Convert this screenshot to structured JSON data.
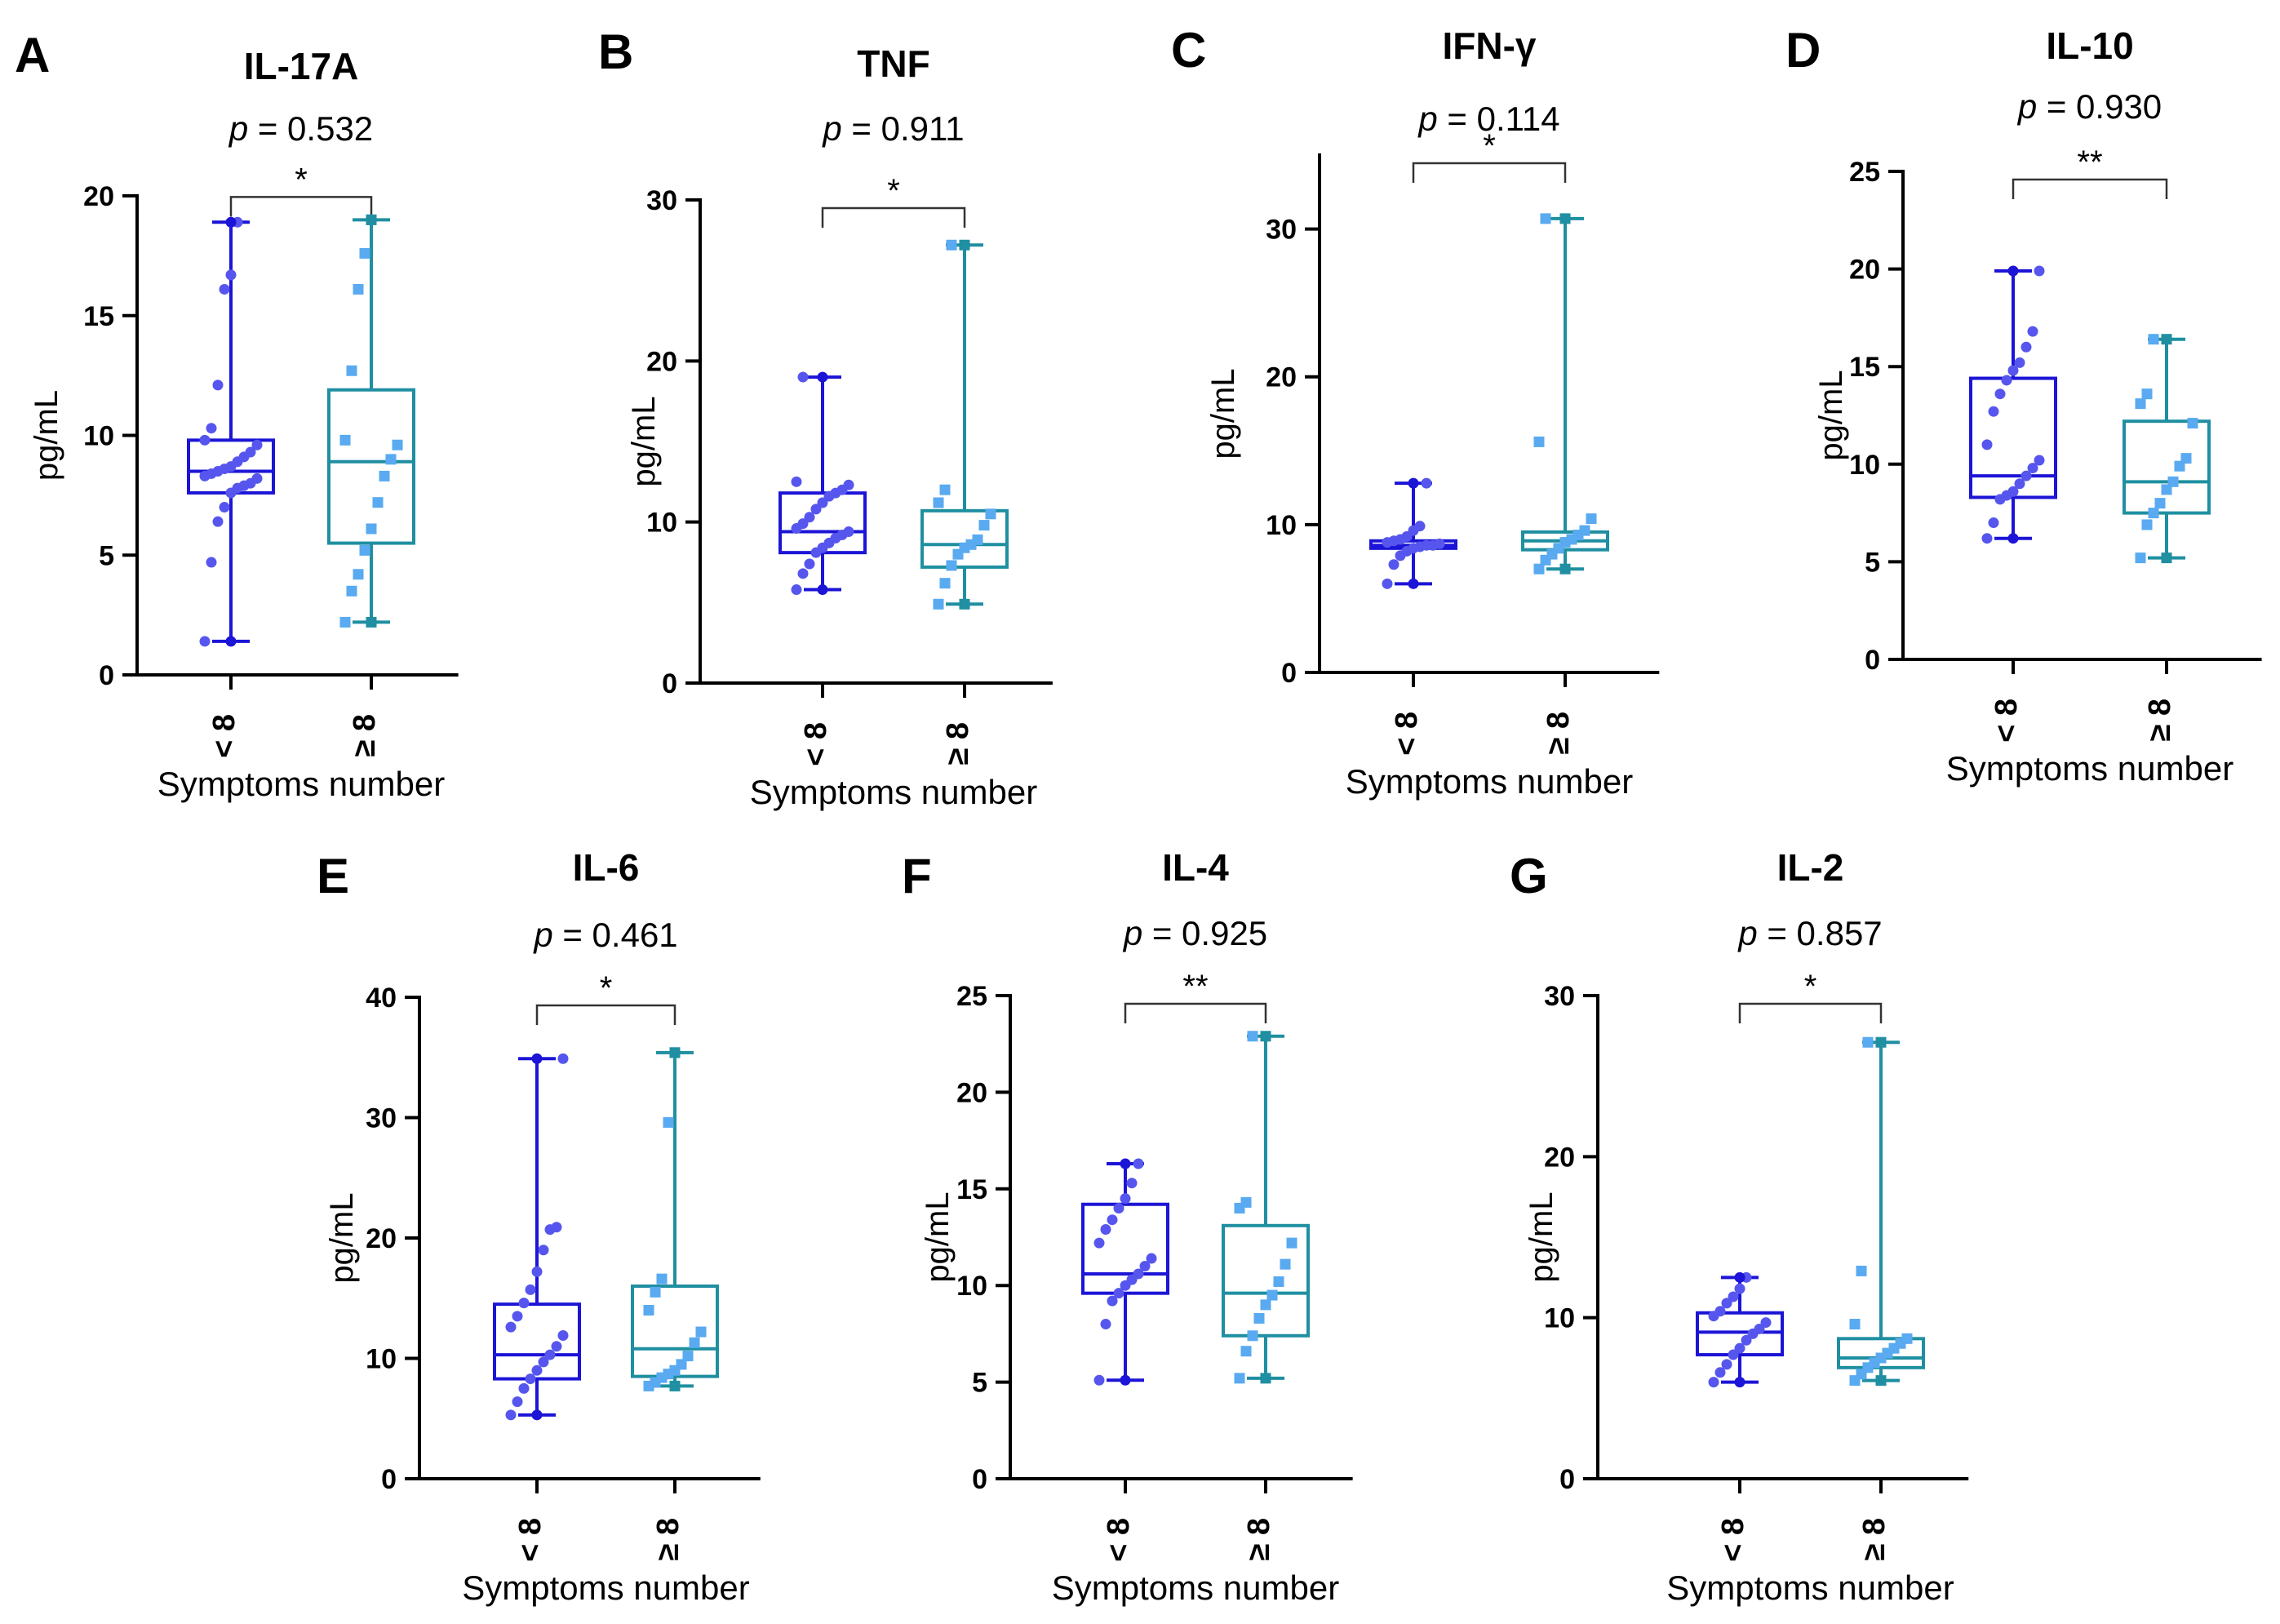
{
  "figure": {
    "ylabel": "pg/mL",
    "xlabel": "Symptoms number",
    "categories": [
      "< 8",
      "≥ 8"
    ]
  },
  "colors": {
    "low": "#1c14d6",
    "high": "#1f8fa1",
    "low_points": "#5656ee",
    "high_points": "#59aaf0",
    "bracket": "#333333",
    "axis": "#000000"
  },
  "chart_data": [
    {
      "panel": "A",
      "title": "IL-17A",
      "p_label": "p",
      "p_value": "= 0.532",
      "sig": "*",
      "type": "box",
      "ylim": [
        0,
        20
      ],
      "yticks": [
        0,
        5,
        10,
        15,
        20
      ],
      "groups": [
        {
          "name": "< 8",
          "min": 1.4,
          "q1": 7.6,
          "median": 8.5,
          "q3": 9.8,
          "max": 18.9,
          "points": [
            1.4,
            4.7,
            6.4,
            7.0,
            7.6,
            7.8,
            7.9,
            8.0,
            8.2,
            8.3,
            8.4,
            8.5,
            8.6,
            8.7,
            8.9,
            9.1,
            9.3,
            9.6,
            9.8,
            10.3,
            12.1,
            16.1,
            16.7,
            18.9
          ]
        },
        {
          "name": "≥ 8",
          "min": 2.2,
          "q1": 5.5,
          "median": 8.9,
          "q3": 11.9,
          "max": 19.0,
          "points": [
            2.2,
            3.5,
            4.2,
            5.2,
            6.1,
            7.2,
            8.3,
            9.0,
            9.6,
            9.8,
            12.7,
            16.1,
            17.6,
            19.0
          ]
        }
      ]
    },
    {
      "panel": "B",
      "title": "TNF",
      "p_label": "p",
      "p_value": "= 0.911",
      "sig": "*",
      "type": "box",
      "ylim": [
        0,
        30
      ],
      "yticks": [
        0,
        10,
        20,
        30
      ],
      "groups": [
        {
          "name": "< 8",
          "min": 5.8,
          "q1": 8.1,
          "median": 9.4,
          "q3": 11.8,
          "max": 19.0,
          "points": [
            5.8,
            6.8,
            7.4,
            8.1,
            8.4,
            8.7,
            9.0,
            9.2,
            9.4,
            9.6,
            9.9,
            10.3,
            10.8,
            11.2,
            11.6,
            11.8,
            12.0,
            12.3,
            12.5,
            19.0
          ]
        },
        {
          "name": "≥ 8",
          "min": 4.9,
          "q1": 7.2,
          "median": 8.6,
          "q3": 10.7,
          "max": 27.2,
          "points": [
            4.9,
            6.2,
            7.3,
            8.0,
            8.4,
            8.6,
            8.9,
            9.8,
            10.5,
            11.2,
            12.0,
            27.2
          ]
        }
      ]
    },
    {
      "panel": "C",
      "title": "IFN-γ",
      "p_label": "p",
      "p_value": "= 0.114",
      "sig": "*",
      "type": "box",
      "ylim": [
        0,
        35
      ],
      "yticks": [
        0,
        10,
        20,
        30
      ],
      "groups": [
        {
          "name": "< 8",
          "min": 6.0,
          "q1": 8.4,
          "median": 8.6,
          "q3": 8.9,
          "max": 12.8,
          "points": [
            6.0,
            7.3,
            7.9,
            8.2,
            8.4,
            8.5,
            8.6,
            8.6,
            8.7,
            8.8,
            8.9,
            9.0,
            9.2,
            9.6,
            9.9,
            12.8
          ]
        },
        {
          "name": "≥ 8",
          "min": 7.0,
          "q1": 8.3,
          "median": 8.9,
          "q3": 9.5,
          "max": 30.7,
          "points": [
            7.0,
            7.6,
            8.0,
            8.4,
            8.8,
            9.0,
            9.3,
            9.6,
            10.4,
            15.6,
            30.7
          ]
        }
      ]
    },
    {
      "panel": "D",
      "title": "IL-10",
      "p_label": "p",
      "p_value": "= 0.930",
      "sig": "**",
      "type": "box",
      "ylim": [
        0,
        25
      ],
      "yticks": [
        0,
        5,
        10,
        15,
        20,
        25
      ],
      "groups": [
        {
          "name": "< 8",
          "min": 6.2,
          "q1": 8.3,
          "median": 9.4,
          "q3": 14.4,
          "max": 19.9,
          "points": [
            6.2,
            7.0,
            8.2,
            8.4,
            8.6,
            9.0,
            9.4,
            9.8,
            10.2,
            11.0,
            12.7,
            13.6,
            14.3,
            14.8,
            15.2,
            16.0,
            16.8,
            19.9
          ]
        },
        {
          "name": "≥ 8",
          "min": 5.2,
          "q1": 7.5,
          "median": 9.1,
          "q3": 12.2,
          "max": 16.4,
          "points": [
            5.2,
            6.9,
            7.5,
            8.0,
            8.7,
            9.1,
            9.9,
            10.3,
            12.1,
            13.1,
            13.6,
            16.4
          ]
        }
      ]
    },
    {
      "panel": "E",
      "title": "IL-6",
      "p_label": "p",
      "p_value": "= 0.461",
      "sig": "*",
      "type": "box",
      "ylim": [
        0,
        40
      ],
      "yticks": [
        0,
        10,
        20,
        30,
        40
      ],
      "groups": [
        {
          "name": "< 8",
          "min": 5.3,
          "q1": 8.3,
          "median": 10.3,
          "q3": 14.5,
          "max": 34.9,
          "points": [
            5.3,
            6.4,
            7.5,
            8.3,
            9.0,
            9.7,
            10.3,
            11.0,
            11.9,
            12.6,
            13.5,
            14.6,
            15.7,
            17.2,
            19.0,
            20.7,
            20.9,
            34.9
          ]
        },
        {
          "name": "≥ 8",
          "min": 7.7,
          "q1": 8.5,
          "median": 10.8,
          "q3": 16.0,
          "max": 35.4,
          "points": [
            7.7,
            8.0,
            8.4,
            8.7,
            9.0,
            9.5,
            10.2,
            11.3,
            12.2,
            14.0,
            15.5,
            16.6,
            29.6,
            35.4
          ]
        }
      ]
    },
    {
      "panel": "F",
      "title": "IL-4",
      "p_label": "p",
      "p_value": "= 0.925",
      "sig": "**",
      "type": "box",
      "ylim": [
        0,
        25
      ],
      "yticks": [
        0,
        5,
        10,
        15,
        20,
        25
      ],
      "groups": [
        {
          "name": "< 8",
          "min": 5.1,
          "q1": 9.6,
          "median": 10.6,
          "q3": 14.2,
          "max": 16.3,
          "points": [
            5.1,
            8.0,
            9.2,
            9.6,
            10.0,
            10.3,
            10.6,
            11.0,
            11.4,
            12.2,
            12.9,
            13.4,
            14.0,
            14.5,
            15.3,
            16.3
          ]
        },
        {
          "name": "≥ 8",
          "min": 5.2,
          "q1": 7.4,
          "median": 9.6,
          "q3": 13.1,
          "max": 22.9,
          "points": [
            5.2,
            6.6,
            7.4,
            8.3,
            9.0,
            9.5,
            10.2,
            11.1,
            12.2,
            14.0,
            14.3,
            22.9
          ]
        }
      ]
    },
    {
      "panel": "G",
      "title": "IL-2",
      "p_label": "p",
      "p_value": "= 0.857",
      "sig": "*",
      "type": "box",
      "ylim": [
        0,
        30
      ],
      "yticks": [
        0,
        10,
        20,
        30
      ],
      "groups": [
        {
          "name": "< 8",
          "min": 6.0,
          "q1": 7.7,
          "median": 9.1,
          "q3": 10.3,
          "max": 12.5,
          "points": [
            6.0,
            6.6,
            7.1,
            7.7,
            8.1,
            8.6,
            9.0,
            9.3,
            9.7,
            10.1,
            10.4,
            10.9,
            11.3,
            11.8,
            12.5
          ]
        },
        {
          "name": "≥ 8",
          "min": 6.1,
          "q1": 6.9,
          "median": 7.5,
          "q3": 8.7,
          "max": 27.1,
          "points": [
            6.1,
            6.5,
            6.9,
            7.2,
            7.5,
            7.8,
            8.1,
            8.4,
            8.7,
            9.6,
            12.9,
            27.1
          ]
        }
      ]
    }
  ]
}
